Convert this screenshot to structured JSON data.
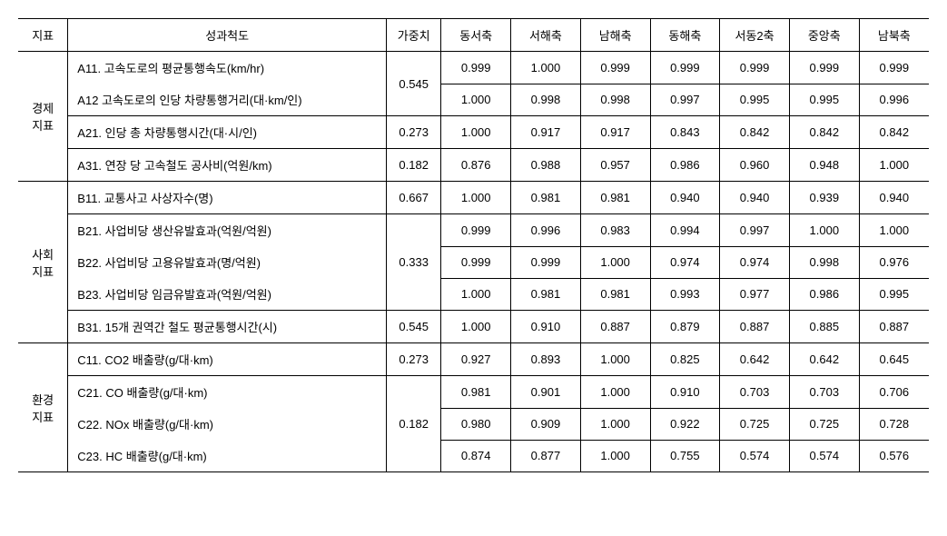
{
  "headers": {
    "indicator": "지표",
    "measure": "성과척도",
    "weight": "가중치",
    "col1": "동서축",
    "col2": "서해축",
    "col3": "남해축",
    "col4": "동해축",
    "col5": "서동2축",
    "col6": "중앙축",
    "col7": "남북축"
  },
  "groups": {
    "economy": "경제\n지표",
    "social": "사회\n지표",
    "environment": "환경\n지표"
  },
  "rows": {
    "a11": {
      "label": "A11. 고속도로의 평균통행속도(km/hr)",
      "c1": "0.999",
      "c2": "1.000",
      "c3": "0.999",
      "c4": "0.999",
      "c5": "0.999",
      "c6": "0.999",
      "c7": "0.999"
    },
    "a12": {
      "label": "A12 고속도로의 인당 차량통행거리(대·km/인)",
      "c1": "1.000",
      "c2": "0.998",
      "c3": "0.998",
      "c4": "0.997",
      "c5": "0.995",
      "c6": "0.995",
      "c7": "0.996"
    },
    "a21": {
      "label": "A21. 인당 총 차량통행시간(대·시/인)",
      "w": "0.273",
      "c1": "1.000",
      "c2": "0.917",
      "c3": "0.917",
      "c4": "0.843",
      "c5": "0.842",
      "c6": "0.842",
      "c7": "0.842"
    },
    "a31": {
      "label": "A31. 연장 당 고속철도 공사비(억원/km)",
      "w": "0.182",
      "c1": "0.876",
      "c2": "0.988",
      "c3": "0.957",
      "c4": "0.986",
      "c5": "0.960",
      "c6": "0.948",
      "c7": "1.000"
    },
    "b11": {
      "label": "B11. 교통사고 사상자수(명)",
      "w": "0.667",
      "c1": "1.000",
      "c2": "0.981",
      "c3": "0.981",
      "c4": "0.940",
      "c5": "0.940",
      "c6": "0.939",
      "c7": "0.940"
    },
    "b21": {
      "label": "B21. 사업비당 생산유발효과(억원/억원)",
      "c1": "0.999",
      "c2": "0.996",
      "c3": "0.983",
      "c4": "0.994",
      "c5": "0.997",
      "c6": "1.000",
      "c7": "1.000"
    },
    "b22": {
      "label": "B22. 사업비당 고용유발효과(명/억원)",
      "w": "0.333",
      "c1": "0.999",
      "c2": "0.999",
      "c3": "1.000",
      "c4": "0.974",
      "c5": "0.974",
      "c6": "0.998",
      "c7": "0.976"
    },
    "b23": {
      "label": "B23. 사업비당 임금유발효과(억원/억원)",
      "c1": "1.000",
      "c2": "0.981",
      "c3": "0.981",
      "c4": "0.993",
      "c5": "0.977",
      "c6": "0.986",
      "c7": "0.995"
    },
    "b31": {
      "label": "B31. 15개 권역간 철도 평균통행시간(시)",
      "w": "0.545",
      "c1": "1.000",
      "c2": "0.910",
      "c3": "0.887",
      "c4": "0.879",
      "c5": "0.887",
      "c6": "0.885",
      "c7": "0.887"
    },
    "c11": {
      "label": "C11. CO2 배출량(g/대·km)",
      "w": "0.273",
      "c1": "0.927",
      "c2": "0.893",
      "c3": "1.000",
      "c4": "0.825",
      "c5": "0.642",
      "c6": "0.642",
      "c7": "0.645"
    },
    "c21": {
      "label": "C21. CO 배출량(g/대·km)",
      "c1": "0.981",
      "c2": "0.901",
      "c3": "1.000",
      "c4": "0.910",
      "c5": "0.703",
      "c6": "0.703",
      "c7": "0.706"
    },
    "c22": {
      "label": "C22. NOx 배출량(g/대·km)",
      "w": "0.182",
      "c1": "0.980",
      "c2": "0.909",
      "c3": "1.000",
      "c4": "0.922",
      "c5": "0.725",
      "c6": "0.725",
      "c7": "0.728"
    },
    "c23": {
      "label": "C23. HC 배출량(g/대·km)",
      "c1": "0.874",
      "c2": "0.877",
      "c3": "1.000",
      "c4": "0.755",
      "c5": "0.574",
      "c6": "0.574",
      "c7": "0.576"
    }
  },
  "weights": {
    "a11a12": "0.545"
  }
}
